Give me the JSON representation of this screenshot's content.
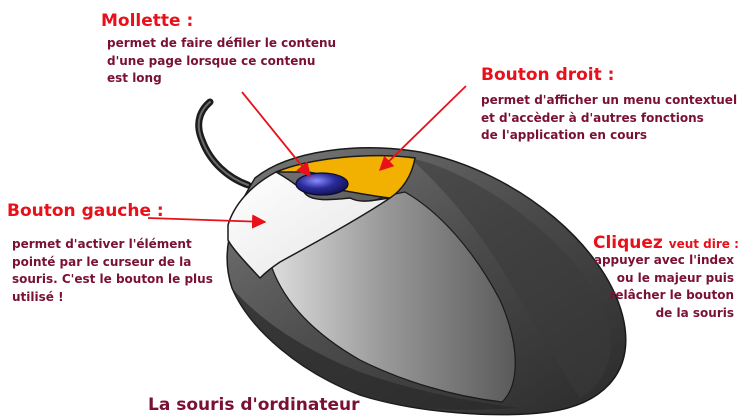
{
  "mollette": {
    "title": "Mollette :",
    "lines": [
      "permet de faire défiler le contenu",
      "d'une page lorsque ce contenu",
      "est long"
    ]
  },
  "bouton_droit": {
    "title": "Bouton droit :",
    "lines": [
      "permet d'afficher un menu contextuel",
      "et d'accèder à d'autres fonctions",
      "de l'application en cours"
    ]
  },
  "bouton_gauche": {
    "title": "Bouton gauche :",
    "lines": [
      "permet d'activer l'élément",
      "pointé par le curseur de la",
      "souris. C'est le bouton le plus",
      "utilisé !"
    ]
  },
  "cliquez": {
    "title": "Cliquez",
    "subtitle": "veut dire :",
    "lines": [
      "appuyer avec l'index",
      "ou le majeur puis",
      "relâcher le bouton",
      "de la souris"
    ]
  },
  "caption": "La souris d'ordinateur",
  "colors": {
    "heading": "#e8101a",
    "text": "#7a1035",
    "arrow": "#e8101a",
    "right_button": "#f2b100",
    "wheel": "#2a2c9a",
    "left_button": "#ffffff",
    "body": "#555555"
  }
}
